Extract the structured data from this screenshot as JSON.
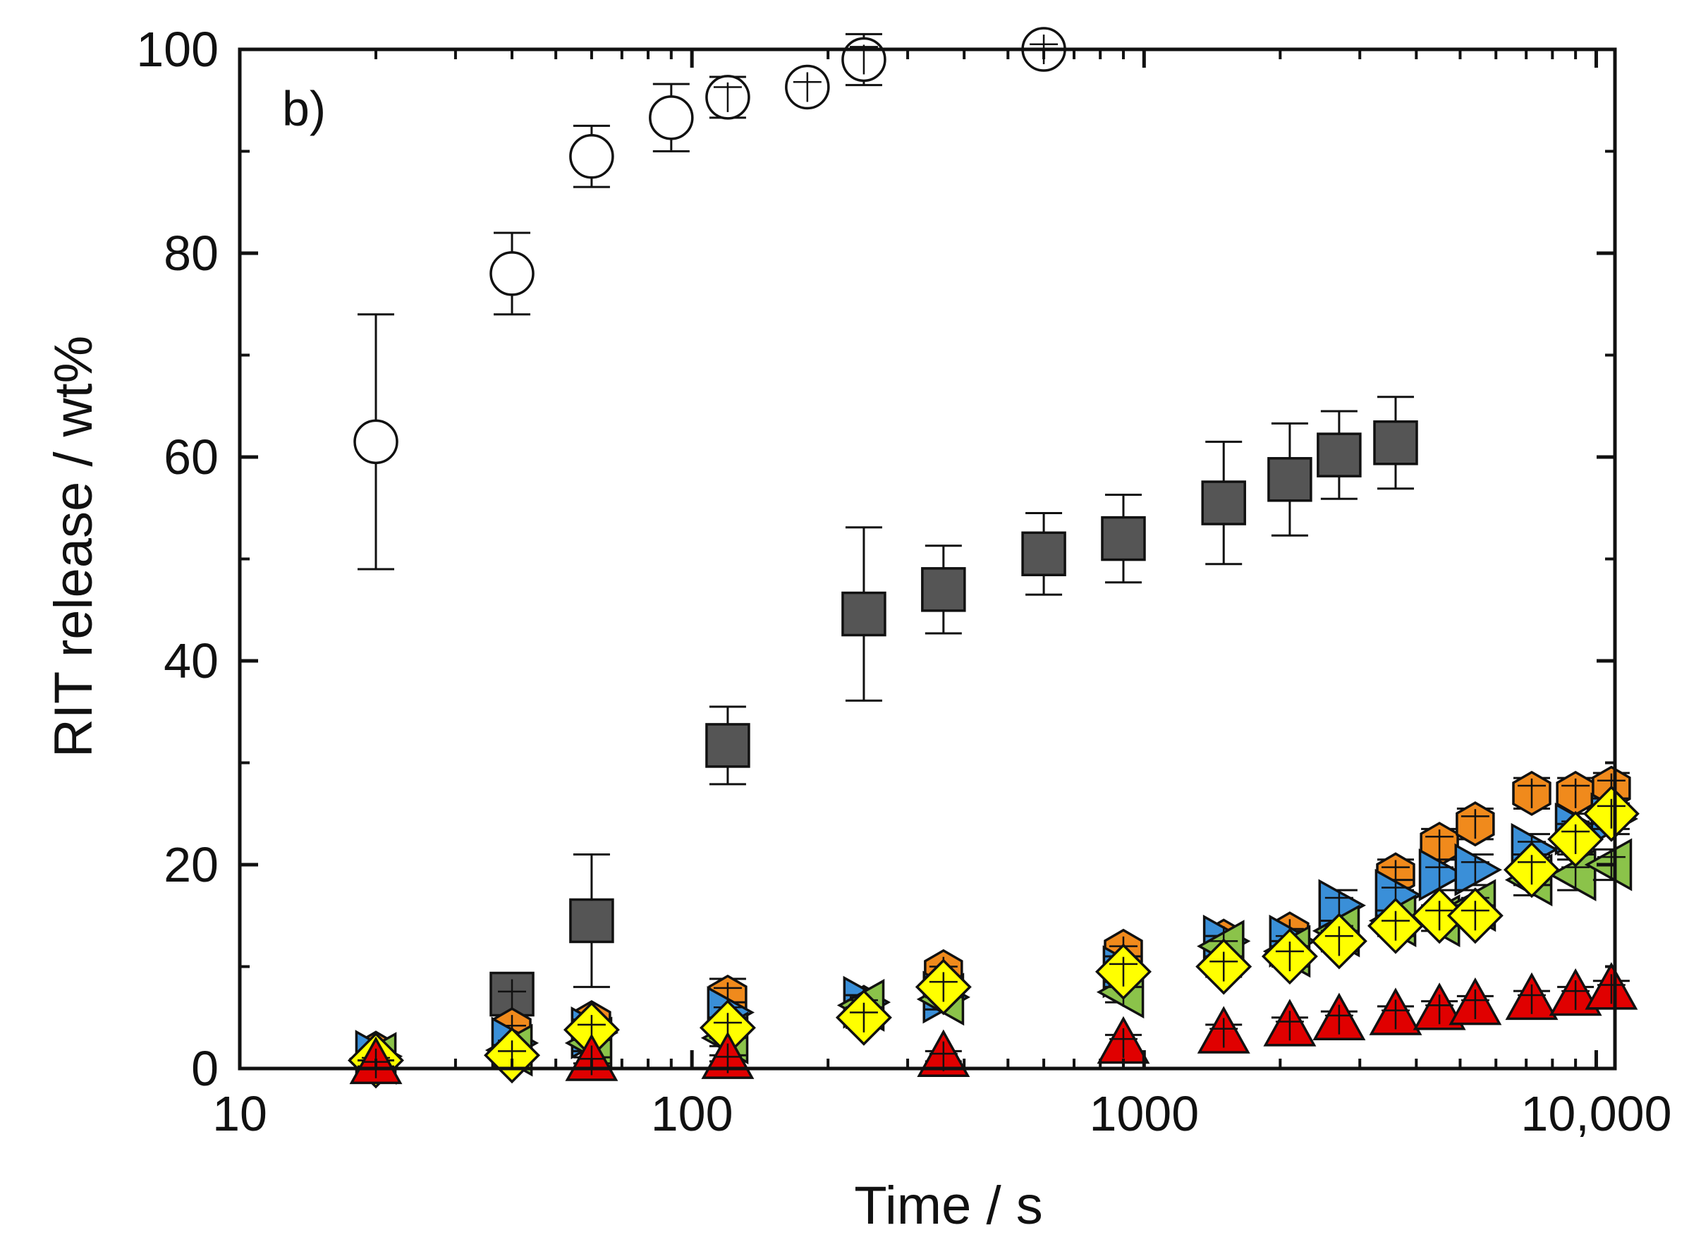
{
  "chart_data": {
    "type": "scatter",
    "panel_label": "b)",
    "xlabel": "Time / s",
    "ylabel": "RIT release / wt%",
    "x_scale": "log",
    "xlim": [
      10,
      11000
    ],
    "ylim": [
      0,
      100
    ],
    "x_ticks": [
      {
        "value": 10,
        "label": "10"
      },
      {
        "value": 100,
        "label": "100"
      },
      {
        "value": 1000,
        "label": "1000"
      },
      {
        "value": 10000,
        "label": "10,000"
      }
    ],
    "y_ticks": [
      {
        "value": 0,
        "label": "0"
      },
      {
        "value": 20,
        "label": "20"
      },
      {
        "value": 40,
        "label": "40"
      },
      {
        "value": 60,
        "label": "60"
      },
      {
        "value": 80,
        "label": "80"
      },
      {
        "value": 100,
        "label": "100"
      }
    ],
    "series": [
      {
        "name": "open circles",
        "marker": "circle",
        "fill": "#ffffff",
        "points": [
          {
            "x": 20,
            "y": 61.5,
            "err": 12.5
          },
          {
            "x": 40,
            "y": 78,
            "err": 4
          },
          {
            "x": 60,
            "y": 89.5,
            "err": 3
          },
          {
            "x": 90,
            "y": 93.3,
            "err": 3.3
          },
          {
            "x": 120,
            "y": 95.3,
            "err": 2
          },
          {
            "x": 180,
            "y": 96.3,
            "err": 1
          },
          {
            "x": 240,
            "y": 99,
            "err": 2.5
          },
          {
            "x": 600,
            "y": 100,
            "err": 1
          }
        ]
      },
      {
        "name": "gray squares",
        "marker": "square",
        "fill": "#555555",
        "points": [
          {
            "x": 40,
            "y": 7.3,
            "err": 0.5
          },
          {
            "x": 60,
            "y": 14.5,
            "err": 6.5
          },
          {
            "x": 120,
            "y": 31.7,
            "err": 3.8
          },
          {
            "x": 240,
            "y": 44.6,
            "err": 8.5
          },
          {
            "x": 360,
            "y": 47,
            "err": 4.3
          },
          {
            "x": 600,
            "y": 50.5,
            "err": 4
          },
          {
            "x": 900,
            "y": 52,
            "err": 4.3
          },
          {
            "x": 1500,
            "y": 55.5,
            "err": 6
          },
          {
            "x": 2100,
            "y": 57.8,
            "err": 5.5
          },
          {
            "x": 2700,
            "y": 60.2,
            "err": 4.3
          },
          {
            "x": 3600,
            "y": 61.4,
            "err": 4.5
          }
        ]
      },
      {
        "name": "orange hexagons",
        "marker": "hexagon",
        "fill": "#f08a1c",
        "points": [
          {
            "x": 20,
            "y": 1.5,
            "err": 0.8
          },
          {
            "x": 40,
            "y": 3.8,
            "err": 0.8
          },
          {
            "x": 60,
            "y": 4.5,
            "err": 0.8
          },
          {
            "x": 120,
            "y": 7,
            "err": 1.8
          },
          {
            "x": 240,
            "y": 6,
            "err": 1
          },
          {
            "x": 360,
            "y": 9.5,
            "err": 1
          },
          {
            "x": 900,
            "y": 11.5,
            "err": 1
          },
          {
            "x": 1500,
            "y": 12.5,
            "err": 1
          },
          {
            "x": 2100,
            "y": 13.2,
            "err": 1
          },
          {
            "x": 2700,
            "y": 15,
            "err": 1
          },
          {
            "x": 3600,
            "y": 19,
            "err": 1.5
          },
          {
            "x": 4500,
            "y": 22,
            "err": 1.5
          },
          {
            "x": 5400,
            "y": 24,
            "err": 1.5
          },
          {
            "x": 7200,
            "y": 27,
            "err": 1.5
          },
          {
            "x": 9000,
            "y": 27,
            "err": 1.5
          },
          {
            "x": 10800,
            "y": 27.5,
            "err": 1.5
          }
        ]
      },
      {
        "name": "blue right triangles",
        "marker": "triangle-right",
        "fill": "#3a8fd8",
        "points": [
          {
            "x": 20,
            "y": 1.2,
            "err": 0.5
          },
          {
            "x": 40,
            "y": 2.5,
            "err": 0.5
          },
          {
            "x": 60,
            "y": 3.5,
            "err": 0.8
          },
          {
            "x": 120,
            "y": 5.5,
            "err": 1
          },
          {
            "x": 240,
            "y": 6.5,
            "err": 1
          },
          {
            "x": 360,
            "y": 7,
            "err": 1
          },
          {
            "x": 900,
            "y": 9.5,
            "err": 1
          },
          {
            "x": 1500,
            "y": 12.5,
            "err": 1
          },
          {
            "x": 2100,
            "y": 12.5,
            "err": 1
          },
          {
            "x": 2700,
            "y": 16,
            "err": 1.5
          },
          {
            "x": 3600,
            "y": 17,
            "err": 1.5
          },
          {
            "x": 4500,
            "y": 19,
            "err": 1.5
          },
          {
            "x": 5400,
            "y": 19.5,
            "err": 1.5
          },
          {
            "x": 7200,
            "y": 21.5,
            "err": 1.5
          },
          {
            "x": 9000,
            "y": 23.5,
            "err": 1.5
          },
          {
            "x": 10800,
            "y": 24.5,
            "err": 1.5
          }
        ]
      },
      {
        "name": "green left triangles",
        "marker": "triangle-left",
        "fill": "#8bc34a",
        "points": [
          {
            "x": 20,
            "y": 1,
            "err": 0.5
          },
          {
            "x": 40,
            "y": 1.8,
            "err": 0.5
          },
          {
            "x": 60,
            "y": 2.5,
            "err": 0.8
          },
          {
            "x": 120,
            "y": 3,
            "err": 0.8
          },
          {
            "x": 240,
            "y": 6.2,
            "err": 1
          },
          {
            "x": 360,
            "y": 6.8,
            "err": 1
          },
          {
            "x": 900,
            "y": 7.5,
            "err": 1
          },
          {
            "x": 1500,
            "y": 12,
            "err": 1
          },
          {
            "x": 2100,
            "y": 11.5,
            "err": 1
          },
          {
            "x": 2700,
            "y": 13.5,
            "err": 1
          },
          {
            "x": 3600,
            "y": 14.5,
            "err": 1
          },
          {
            "x": 4500,
            "y": 14.5,
            "err": 1
          },
          {
            "x": 5400,
            "y": 16,
            "err": 1.5
          },
          {
            "x": 7200,
            "y": 18.5,
            "err": 1.5
          },
          {
            "x": 9000,
            "y": 19,
            "err": 1.5
          },
          {
            "x": 10800,
            "y": 20,
            "err": 1.5
          }
        ]
      },
      {
        "name": "yellow diamonds",
        "marker": "diamond",
        "fill": "#ffff00",
        "points": [
          {
            "x": 20,
            "y": 0.8,
            "err": 0.5
          },
          {
            "x": 40,
            "y": 1.3,
            "err": 0.8
          },
          {
            "x": 60,
            "y": 3.8,
            "err": 1
          },
          {
            "x": 120,
            "y": 4,
            "err": 1
          },
          {
            "x": 240,
            "y": 5,
            "err": 1
          },
          {
            "x": 360,
            "y": 8,
            "err": 1
          },
          {
            "x": 900,
            "y": 9.5,
            "err": 1.5
          },
          {
            "x": 1500,
            "y": 10,
            "err": 1
          },
          {
            "x": 2100,
            "y": 11,
            "err": 1
          },
          {
            "x": 2700,
            "y": 12.5,
            "err": 1
          },
          {
            "x": 3600,
            "y": 14,
            "err": 1
          },
          {
            "x": 4500,
            "y": 15,
            "err": 1
          },
          {
            "x": 5400,
            "y": 15,
            "err": 1
          },
          {
            "x": 7200,
            "y": 19.5,
            "err": 1.5
          },
          {
            "x": 9000,
            "y": 22.5,
            "err": 1.5
          },
          {
            "x": 10800,
            "y": 25,
            "err": 1.5
          }
        ]
      },
      {
        "name": "red triangles",
        "marker": "triangle-up",
        "fill": "#e00000",
        "points": [
          {
            "x": 20,
            "y": 0.5,
            "err": 0.3
          },
          {
            "x": 60,
            "y": 0.8,
            "err": 0.3
          },
          {
            "x": 120,
            "y": 1,
            "err": 0.3
          },
          {
            "x": 360,
            "y": 1.2,
            "err": 0.5
          },
          {
            "x": 900,
            "y": 2.5,
            "err": 0.8
          },
          {
            "x": 1500,
            "y": 3.5,
            "err": 0.8
          },
          {
            "x": 2100,
            "y": 4.2,
            "err": 0.8
          },
          {
            "x": 2700,
            "y": 4.8,
            "err": 0.8
          },
          {
            "x": 3600,
            "y": 5.3,
            "err": 0.8
          },
          {
            "x": 4500,
            "y": 5.8,
            "err": 0.8
          },
          {
            "x": 5400,
            "y": 6.3,
            "err": 0.8
          },
          {
            "x": 7200,
            "y": 6.8,
            "err": 0.8
          },
          {
            "x": 9000,
            "y": 7.2,
            "err": 0.8
          },
          {
            "x": 10800,
            "y": 7.8,
            "err": 0.8
          }
        ]
      }
    ]
  }
}
